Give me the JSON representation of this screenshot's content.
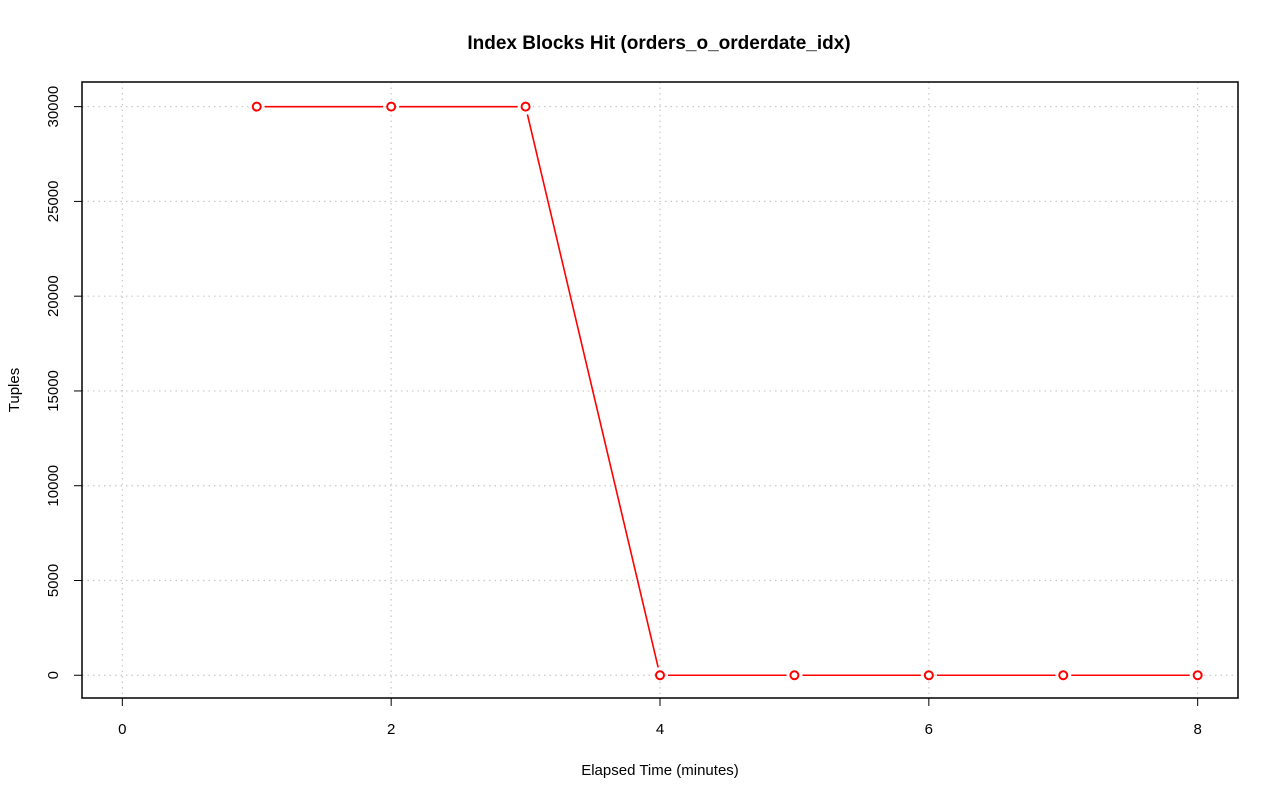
{
  "chart_data": {
    "type": "line",
    "title": "Index Blocks Hit (orders_o_orderdate_idx)",
    "xlabel": "Elapsed Time (minutes)",
    "ylabel": "Tuples",
    "xlim": [
      -0.3,
      8.3
    ],
    "ylim": [
      -1200,
      31300
    ],
    "xticks": [
      0,
      2,
      4,
      6,
      8
    ],
    "yticks": [
      0,
      5000,
      10000,
      15000,
      20000,
      25000,
      30000
    ],
    "grid": true,
    "series": [
      {
        "color": "#ff0000",
        "x": [
          1,
          2,
          3,
          4,
          5,
          6,
          7,
          8
        ],
        "y": [
          30000,
          30000,
          30000,
          0,
          0,
          0,
          0,
          0
        ]
      }
    ]
  }
}
